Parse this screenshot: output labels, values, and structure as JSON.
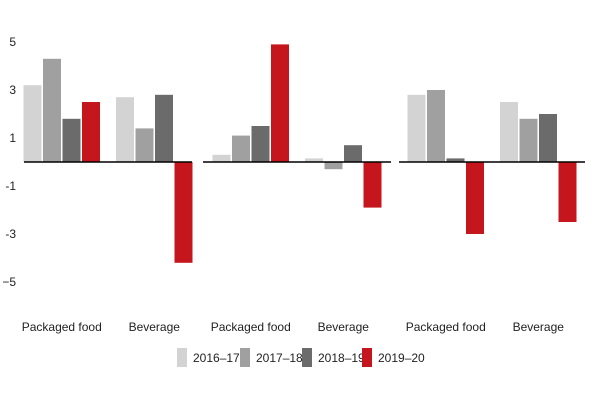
{
  "chart_data": {
    "type": "bar",
    "ylim": [
      -5.5,
      5.5
    ],
    "yticks": [
      5,
      3,
      1,
      -1,
      -3,
      -5
    ],
    "ytick_labels": [
      "5",
      "3",
      "1",
      "-1",
      "-3",
      "−5"
    ],
    "grid": false,
    "legend_position": "bottom",
    "series": [
      {
        "name": "2016–17",
        "color": "#d3d3d3"
      },
      {
        "name": "2017–18",
        "color": "#a0a0a0"
      },
      {
        "name": "2018–19",
        "color": "#6b6b6b"
      },
      {
        "name": "2019–20",
        "color": "#c4161c"
      }
    ],
    "panels": [
      {
        "groups": [
          {
            "category": "Packaged food",
            "values": [
              3.2,
              4.3,
              1.8,
              2.5
            ]
          },
          {
            "category": "Beverage",
            "values": [
              2.7,
              1.4,
              2.8,
              -4.2
            ]
          }
        ]
      },
      {
        "groups": [
          {
            "category": "Packaged food",
            "values": [
              0.3,
              1.1,
              1.5,
              4.9
            ]
          },
          {
            "category": "Beverage",
            "values": [
              0.15,
              -0.3,
              0.7,
              -1.9
            ]
          }
        ]
      },
      {
        "groups": [
          {
            "category": "Packaged food",
            "values": [
              2.8,
              3.0,
              0.15,
              -3.0
            ]
          },
          {
            "category": "Beverage",
            "values": [
              2.5,
              1.8,
              2.0,
              -2.5
            ]
          }
        ]
      }
    ]
  }
}
